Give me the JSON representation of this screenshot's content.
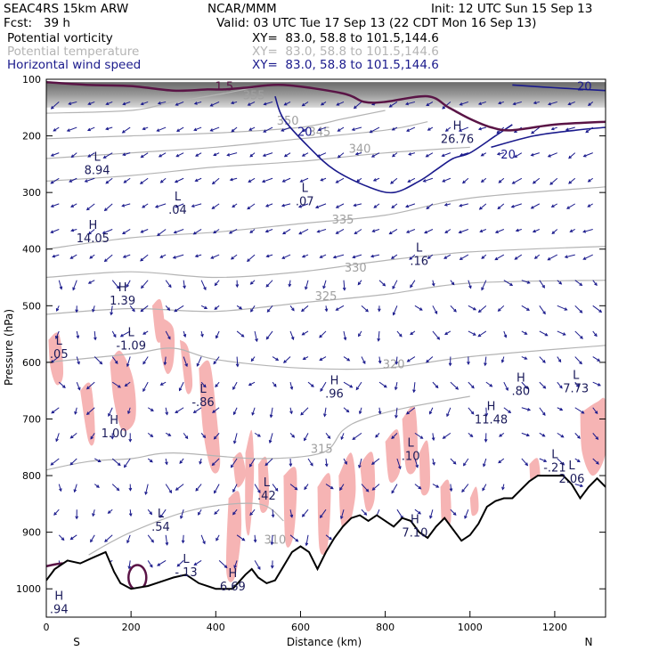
{
  "header": {
    "model": "SEAC4RS 15km ARW",
    "org": "NCAR/MMM",
    "init": "Init: 12 UTC Sun 15 Sep 13",
    "fcst": "Fcst:   39 h",
    "valid": "Valid: 03 UTC Tue 17 Sep 13 (22 CDT Mon 16 Sep 13)"
  },
  "fields": [
    {
      "name": "Potential vorticity",
      "xy": "XY=  83.0, 58.8 to 101.5,144.6",
      "color": "#000000"
    },
    {
      "name": "Potential temperature",
      "xy": "XY=  83.0, 58.8 to 101.5,144.6",
      "color": "#b4b4b4"
    },
    {
      "name": "Horizontal wind speed",
      "xy": "XY=  83.0, 58.8 to 101.5,144.6",
      "color": "#1a1a8c"
    }
  ],
  "chart_data": {
    "type": "cross-section",
    "xlabel": "Distance (km)",
    "ylabel": "Pressure (hPa)",
    "xlim": [
      0,
      1320
    ],
    "ylim": [
      1050,
      100
    ],
    "x_ticks": [
      0,
      200,
      400,
      600,
      800,
      1000,
      1200
    ],
    "y_ticks": [
      100,
      200,
      300,
      400,
      500,
      600,
      700,
      800,
      900,
      1000
    ],
    "end_labels": {
      "left": "S",
      "right": "N"
    },
    "terrain": [
      [
        0,
        985
      ],
      [
        20,
        965
      ],
      [
        50,
        950
      ],
      [
        80,
        955
      ],
      [
        110,
        945
      ],
      [
        140,
        935
      ],
      [
        160,
        970
      ],
      [
        175,
        990
      ],
      [
        200,
        1000
      ],
      [
        240,
        995
      ],
      [
        280,
        985
      ],
      [
        300,
        980
      ],
      [
        330,
        975
      ],
      [
        360,
        990
      ],
      [
        400,
        1000
      ],
      [
        440,
        1000
      ],
      [
        470,
        975
      ],
      [
        485,
        965
      ],
      [
        500,
        980
      ],
      [
        520,
        990
      ],
      [
        540,
        985
      ],
      [
        560,
        960
      ],
      [
        580,
        935
      ],
      [
        600,
        925
      ],
      [
        620,
        935
      ],
      [
        640,
        965
      ],
      [
        660,
        935
      ],
      [
        680,
        910
      ],
      [
        700,
        890
      ],
      [
        720,
        875
      ],
      [
        740,
        870
      ],
      [
        760,
        880
      ],
      [
        780,
        870
      ],
      [
        800,
        880
      ],
      [
        820,
        890
      ],
      [
        840,
        875
      ],
      [
        860,
        880
      ],
      [
        880,
        900
      ],
      [
        900,
        910
      ],
      [
        920,
        890
      ],
      [
        940,
        875
      ],
      [
        960,
        895
      ],
      [
        980,
        915
      ],
      [
        1000,
        905
      ],
      [
        1020,
        885
      ],
      [
        1040,
        855
      ],
      [
        1060,
        845
      ],
      [
        1080,
        840
      ],
      [
        1100,
        840
      ],
      [
        1120,
        825
      ],
      [
        1140,
        810
      ],
      [
        1160,
        800
      ],
      [
        1180,
        800
      ],
      [
        1200,
        800
      ],
      [
        1220,
        800
      ],
      [
        1240,
        815
      ],
      [
        1260,
        840
      ],
      [
        1280,
        820
      ],
      [
        1300,
        805
      ],
      [
        1320,
        820
      ]
    ],
    "theta_contours": [
      {
        "value": "355",
        "label_at": [
          490,
          135
        ],
        "points": [
          [
            0,
            160
          ],
          [
            200,
            155
          ],
          [
            300,
            140
          ],
          [
            420,
            125
          ],
          [
            520,
            110
          ]
        ]
      },
      {
        "value": "350",
        "label_at": [
          570,
          180
        ],
        "points": [
          [
            0,
            205
          ],
          [
            200,
            200
          ],
          [
            400,
            195
          ],
          [
            600,
            185
          ],
          [
            700,
            170
          ],
          [
            800,
            155
          ]
        ]
      },
      {
        "value": "345",
        "label_at": [
          645,
          200
        ],
        "points": [
          [
            0,
            240
          ],
          [
            200,
            230
          ],
          [
            400,
            220
          ],
          [
            600,
            205
          ],
          [
            800,
            190
          ],
          [
            900,
            175
          ]
        ]
      },
      {
        "value": "340",
        "label_at": [
          740,
          230
        ],
        "points": [
          [
            0,
            280
          ],
          [
            200,
            270
          ],
          [
            400,
            255
          ],
          [
            600,
            245
          ],
          [
            800,
            230
          ],
          [
            1000,
            220
          ]
        ]
      },
      {
        "value": "335",
        "label_at": [
          700,
          355
        ],
        "points": [
          [
            0,
            400
          ],
          [
            200,
            380
          ],
          [
            400,
            370
          ],
          [
            600,
            355
          ],
          [
            800,
            340
          ],
          [
            1000,
            310
          ],
          [
            1320,
            290
          ]
        ]
      },
      {
        "value": "330",
        "label_at": [
          730,
          440
        ],
        "points": [
          [
            0,
            450
          ],
          [
            200,
            440
          ],
          [
            400,
            450
          ],
          [
            600,
            440
          ],
          [
            800,
            420
          ],
          [
            1000,
            405
          ],
          [
            1320,
            395
          ]
        ]
      },
      {
        "value": "325",
        "label_at": [
          660,
          490
        ],
        "points": [
          [
            0,
            515
          ],
          [
            200,
            505
          ],
          [
            400,
            510
          ],
          [
            600,
            495
          ],
          [
            800,
            480
          ],
          [
            1000,
            460
          ],
          [
            1320,
            455
          ]
        ]
      },
      {
        "value": "320",
        "label_at": [
          820,
          610
        ],
        "points": [
          [
            0,
            600
          ],
          [
            200,
            585
          ],
          [
            300,
            575
          ],
          [
            400,
            595
          ],
          [
            600,
            610
          ],
          [
            800,
            610
          ],
          [
            1000,
            590
          ],
          [
            1320,
            570
          ]
        ]
      },
      {
        "value": "315",
        "label_at": [
          650,
          760
        ],
        "points": [
          [
            0,
            790
          ],
          [
            100,
            775
          ],
          [
            200,
            770
          ],
          [
            300,
            760
          ],
          [
            500,
            770
          ],
          [
            650,
            760
          ],
          [
            700,
            720
          ],
          [
            750,
            700
          ],
          [
            850,
            680
          ],
          [
            1000,
            660
          ]
        ]
      },
      {
        "value": "310",
        "label_at": [
          540,
          920
        ],
        "points": [
          [
            100,
            940
          ],
          [
            200,
            900
          ],
          [
            350,
            860
          ],
          [
            500,
            850
          ],
          [
            560,
            880
          ]
        ]
      }
    ],
    "pv_contours": [
      {
        "value": "1.5",
        "label_at": [
          420,
          120
        ],
        "points": [
          [
            0,
            105
          ],
          [
            100,
            110
          ],
          [
            200,
            112
          ],
          [
            300,
            120
          ],
          [
            380,
            118
          ],
          [
            420,
            118
          ],
          [
            470,
            115
          ],
          [
            560,
            110
          ],
          [
            700,
            125
          ],
          [
            750,
            140
          ],
          [
            800,
            140
          ],
          [
            900,
            130
          ],
          [
            950,
            150
          ],
          [
            1000,
            170
          ],
          [
            1050,
            185
          ],
          [
            1100,
            190
          ],
          [
            1200,
            180
          ],
          [
            1320,
            175
          ]
        ]
      },
      {
        "value": "1.5",
        "label_at": [
          35,
          980
        ],
        "points": [
          [
            0,
            960
          ],
          [
            40,
            955
          ],
          [
            80,
            960
          ],
          [
            110,
            980
          ],
          [
            120,
            1000
          ]
        ]
      }
    ],
    "wind_speed_contours": [
      {
        "value": "20",
        "label_at": [
          610,
          200
        ],
        "points": [
          [
            540,
            130
          ],
          [
            560,
            170
          ],
          [
            620,
            220
          ],
          [
            680,
            260
          ],
          [
            760,
            290
          ],
          [
            820,
            300
          ],
          [
            880,
            280
          ],
          [
            920,
            260
          ],
          [
            960,
            240
          ],
          [
            1000,
            230
          ],
          [
            1060,
            200
          ],
          [
            1100,
            180
          ]
        ]
      },
      {
        "value": "20",
        "label_at": [
          1270,
          120
        ],
        "points": [
          [
            1100,
            110
          ],
          [
            1200,
            115
          ],
          [
            1320,
            120
          ]
        ]
      },
      {
        "value": "20",
        "label_at": [
          1090,
          240
        ],
        "points": [
          [
            1050,
            220
          ],
          [
            1150,
            200
          ],
          [
            1250,
            190
          ],
          [
            1320,
            185
          ]
        ]
      }
    ],
    "pv_extrema": [
      {
        "kind": "L",
        "value": "8.94",
        "x": 120,
        "y": 255
      },
      {
        "kind": "L",
        "value": ".04",
        "x": 310,
        "y": 325
      },
      {
        "kind": "L",
        "value": ".07",
        "x": 610,
        "y": 310
      },
      {
        "kind": "H",
        "value": "14.05",
        "x": 110,
        "y": 375
      },
      {
        "kind": "H",
        "value": "26.76",
        "x": 970,
        "y": 200
      },
      {
        "kind": "L",
        "value": ".16",
        "x": 880,
        "y": 415
      },
      {
        "kind": "H",
        "value": "1.39",
        "x": 180,
        "y": 485
      },
      {
        "kind": "L",
        "value": "-1.09",
        "x": 200,
        "y": 565
      },
      {
        "kind": "L",
        "value": ".05",
        "x": 30,
        "y": 580
      },
      {
        "kind": "H",
        "value": ".96",
        "x": 680,
        "y": 650
      },
      {
        "kind": "H",
        "value": ".80",
        "x": 1120,
        "y": 645
      },
      {
        "kind": "L",
        "value": "7.73",
        "x": 1250,
        "y": 640
      },
      {
        "kind": "L",
        "value": "-.86",
        "x": 370,
        "y": 665
      },
      {
        "kind": "H",
        "value": "11.48",
        "x": 1050,
        "y": 695
      },
      {
        "kind": "H",
        "value": "1.00",
        "x": 160,
        "y": 720
      },
      {
        "kind": "L",
        "value": ".10",
        "x": 860,
        "y": 760
      },
      {
        "kind": "L",
        "value": "-.21",
        "x": 1200,
        "y": 780
      },
      {
        "kind": "L",
        "value": "2.06",
        "x": 1240,
        "y": 800
      },
      {
        "kind": "L",
        "value": ".42",
        "x": 520,
        "y": 830
      },
      {
        "kind": "L",
        "value": ".54",
        "x": 270,
        "y": 885
      },
      {
        "kind": "H",
        "value": "7.10",
        "x": 870,
        "y": 895
      },
      {
        "kind": "L",
        "value": "-.13",
        "x": 330,
        "y": 965
      },
      {
        "kind": "H",
        "value": "6.69",
        "x": 440,
        "y": 990
      },
      {
        "kind": "H",
        "value": ".94",
        "x": 30,
        "y": 1030
      }
    ],
    "positive_pv_regions": [
      [
        [
          5,
          560
        ],
        [
          30,
          550
        ],
        [
          40,
          620
        ],
        [
          25,
          640
        ],
        [
          10,
          610
        ]
      ],
      [
        [
          80,
          650
        ],
        [
          105,
          640
        ],
        [
          115,
          730
        ],
        [
          100,
          740
        ]
      ],
      [
        [
          150,
          600
        ],
        [
          175,
          580
        ],
        [
          205,
          630
        ],
        [
          210,
          700
        ],
        [
          180,
          720
        ],
        [
          160,
          670
        ]
      ],
      [
        [
          250,
          500
        ],
        [
          270,
          490
        ],
        [
          280,
          540
        ],
        [
          275,
          560
        ],
        [
          260,
          560
        ]
      ],
      [
        [
          270,
          520
        ],
        [
          300,
          540
        ],
        [
          300,
          600
        ],
        [
          285,
          620
        ],
        [
          270,
          580
        ]
      ],
      [
        [
          315,
          560
        ],
        [
          335,
          575
        ],
        [
          345,
          640
        ],
        [
          330,
          650
        ]
      ],
      [
        [
          360,
          610
        ],
        [
          385,
          600
        ],
        [
          400,
          680
        ],
        [
          410,
          780
        ],
        [
          390,
          790
        ],
        [
          370,
          720
        ]
      ],
      [
        [
          440,
          770
        ],
        [
          460,
          760
        ],
        [
          470,
          800
        ],
        [
          450,
          820
        ]
      ],
      [
        [
          430,
          840
        ],
        [
          455,
          830
        ],
        [
          460,
          900
        ],
        [
          445,
          980
        ],
        [
          425,
          970
        ]
      ],
      [
        [
          470,
          760
        ],
        [
          485,
          720
        ],
        [
          490,
          800
        ],
        [
          480,
          900
        ],
        [
          470,
          880
        ]
      ],
      [
        [
          500,
          780
        ],
        [
          520,
          770
        ],
        [
          525,
          850
        ],
        [
          505,
          860
        ]
      ],
      [
        [
          560,
          800
        ],
        [
          590,
          790
        ],
        [
          585,
          900
        ],
        [
          565,
          920
        ]
      ],
      [
        [
          640,
          820
        ],
        [
          670,
          800
        ],
        [
          665,
          920
        ],
        [
          645,
          930
        ]
      ],
      [
        [
          690,
          800
        ],
        [
          720,
          760
        ],
        [
          730,
          830
        ],
        [
          710,
          900
        ],
        [
          695,
          880
        ]
      ],
      [
        [
          740,
          780
        ],
        [
          770,
          760
        ],
        [
          775,
          840
        ],
        [
          755,
          860
        ]
      ],
      [
        [
          800,
          740
        ],
        [
          830,
          720
        ],
        [
          835,
          790
        ],
        [
          810,
          810
        ]
      ],
      [
        [
          840,
          700
        ],
        [
          870,
          680
        ],
        [
          875,
          780
        ],
        [
          850,
          790
        ]
      ],
      [
        [
          880,
          760
        ],
        [
          900,
          740
        ],
        [
          905,
          820
        ],
        [
          885,
          830
        ]
      ],
      [
        [
          930,
          820
        ],
        [
          950,
          810
        ],
        [
          955,
          880
        ],
        [
          935,
          890
        ]
      ],
      [
        [
          1000,
          840
        ],
        [
          1015,
          820
        ],
        [
          1020,
          860
        ],
        [
          1005,
          870
        ]
      ],
      [
        [
          1140,
          780
        ],
        [
          1160,
          770
        ],
        [
          1165,
          810
        ],
        [
          1145,
          815
        ]
      ],
      [
        [
          1260,
          690
        ],
        [
          1300,
          670
        ],
        [
          1320,
          670
        ],
        [
          1320,
          760
        ],
        [
          1290,
          800
        ],
        [
          1265,
          760
        ]
      ]
    ],
    "high_pv_band": {
      "p_top": 105,
      "p_bottom": 150,
      "x_end": 1320
    }
  }
}
